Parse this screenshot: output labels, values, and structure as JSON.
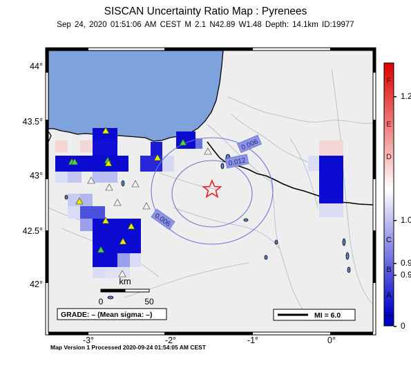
{
  "header": {
    "title": "SISCAN Uncertainty Ratio Map : Pyrenees",
    "event": {
      "datetime": "Sep 24, 2020 01:51:06 AM CEST",
      "magnitude": "M 2.1",
      "location": "N42.89 W1.48",
      "depth": "Depth: 14.1km",
      "id": "ID:19977"
    }
  },
  "map": {
    "x_ticks": [
      "-3°",
      "-2°",
      "-1°",
      "0°"
    ],
    "y_ticks": [
      "44°",
      "43.5°",
      "43°",
      "42.5°",
      "42°"
    ],
    "colors": {
      "sea": "#7da2dc",
      "land": "#eeeeee",
      "contour": "#6f74d6"
    },
    "contour_labels": [
      "0.006",
      "0.012",
      "0.006"
    ],
    "scale_bar": {
      "unit": "km",
      "start": "0",
      "end": "50"
    },
    "grade_box": "GRADE: – (Mean sigma: –)",
    "mi_legend": "MI = 6.0",
    "epicenter_symbol": "star-icon"
  },
  "colorbar": {
    "gradient": [
      "#0000cc",
      "#ffffff",
      "#dd0000"
    ],
    "letters": [
      "F",
      "E",
      "D",
      "C",
      "B",
      "A"
    ],
    "values": [
      "1.2",
      "1.0",
      "0.9",
      "0.9",
      "0"
    ]
  },
  "footer": {
    "text": "Map Version 1 Processed 2020-09-24 01:54:05 AM CEST"
  }
}
